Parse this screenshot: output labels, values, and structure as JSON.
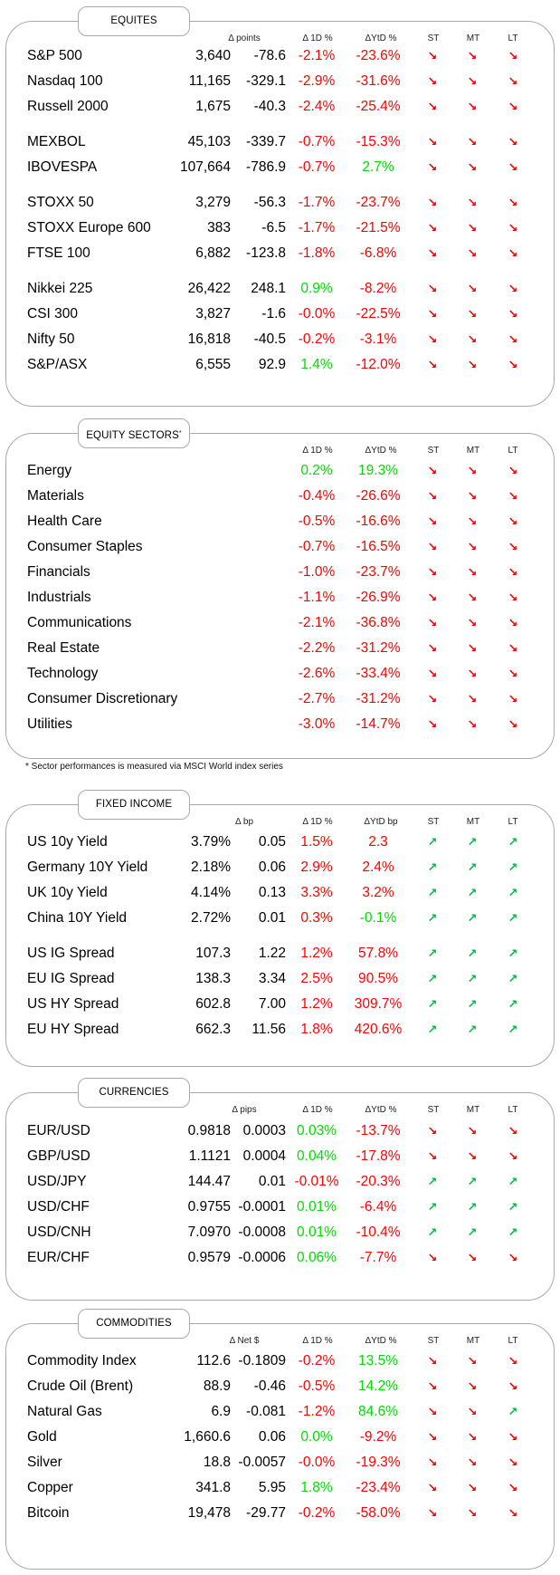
{
  "sections": [
    {
      "id": "equities",
      "title": "EQUITES",
      "superscript": "",
      "headers": [
        "Δ points",
        "Δ 1D %",
        "ΔYtD %",
        "ST",
        "MT",
        "LT"
      ],
      "groups": [
        [
          {
            "name": "S&P 500",
            "level": "3,640",
            "delta": "-78.6",
            "d1": "-2.1%",
            "ytd": "-23.6%",
            "st": "down",
            "mt": "down",
            "lt": "down"
          },
          {
            "name": "Nasdaq 100",
            "level": "11,165",
            "delta": "-329.1",
            "d1": "-2.9%",
            "ytd": "-31.6%",
            "st": "down",
            "mt": "down",
            "lt": "down"
          },
          {
            "name": "Russell 2000",
            "level": "1,675",
            "delta": "-40.3",
            "d1": "-2.4%",
            "ytd": "-25.4%",
            "st": "down",
            "mt": "down",
            "lt": "down"
          }
        ],
        [
          {
            "name": "MEXBOL",
            "level": "45,103",
            "delta": "-339.7",
            "d1": "-0.7%",
            "ytd": "-15.3%",
            "st": "down",
            "mt": "down",
            "lt": "down"
          },
          {
            "name": "IBOVESPA",
            "level": "107,664",
            "delta": "-786.9",
            "d1": "-0.7%",
            "ytd": "2.7%",
            "st": "down",
            "mt": "down",
            "lt": "down"
          }
        ],
        [
          {
            "name": "STOXX 50",
            "level": "3,279",
            "delta": "-56.3",
            "d1": "-1.7%",
            "ytd": "-23.7%",
            "st": "down",
            "mt": "down",
            "lt": "down"
          },
          {
            "name": "STOXX Europe 600",
            "level": "383",
            "delta": "-6.5",
            "d1": "-1.7%",
            "ytd": "-21.5%",
            "st": "down",
            "mt": "down",
            "lt": "down"
          },
          {
            "name": "FTSE 100",
            "level": "6,882",
            "delta": "-123.8",
            "d1": "-1.8%",
            "ytd": "-6.8%",
            "st": "down",
            "mt": "down",
            "lt": "down"
          }
        ],
        [
          {
            "name": "Nikkei 225",
            "level": "26,422",
            "delta": "248.1",
            "d1": "0.9%",
            "ytd": "-8.2%",
            "st": "down",
            "mt": "down",
            "lt": "down"
          },
          {
            "name": "CSI 300",
            "level": "3,827",
            "delta": "-1.6",
            "d1": "-0.0%",
            "ytd": "-22.5%",
            "st": "down",
            "mt": "down",
            "lt": "down"
          },
          {
            "name": "Nifty  50",
            "level": "16,818",
            "delta": "-40.5",
            "d1": "-0.2%",
            "ytd": "-3.1%",
            "st": "down",
            "mt": "down",
            "lt": "down"
          },
          {
            "name": "S&P/ASX",
            "level": "6,555",
            "delta": "92.9",
            "d1": "1.4%",
            "ytd": "-12.0%",
            "st": "down",
            "mt": "down",
            "lt": "down"
          }
        ]
      ]
    },
    {
      "id": "sectors",
      "title": "EQUITY SECTORS",
      "superscript": "*",
      "headers": [
        "",
        "Δ 1D %",
        "ΔYtD %",
        "ST",
        "MT",
        "LT"
      ],
      "groups": [
        [
          {
            "name": "Energy",
            "level": "",
            "delta": "",
            "d1": "0.2%",
            "ytd": "19.3%",
            "st": "down",
            "mt": "down",
            "lt": "down"
          },
          {
            "name": "Materials",
            "level": "",
            "delta": "",
            "d1": "-0.4%",
            "ytd": "-26.6%",
            "st": "down",
            "mt": "down",
            "lt": "down"
          },
          {
            "name": "Health Care",
            "level": "",
            "delta": "",
            "d1": "-0.5%",
            "ytd": "-16.6%",
            "st": "down",
            "mt": "down",
            "lt": "down"
          },
          {
            "name": "Consumer Staples",
            "level": "",
            "delta": "",
            "d1": "-0.7%",
            "ytd": "-16.5%",
            "st": "down",
            "mt": "down",
            "lt": "down"
          },
          {
            "name": "Financials",
            "level": "",
            "delta": "",
            "d1": "-1.0%",
            "ytd": "-23.7%",
            "st": "down",
            "mt": "down",
            "lt": "down"
          },
          {
            "name": "Industrials",
            "level": "",
            "delta": "",
            "d1": "-1.1%",
            "ytd": "-26.9%",
            "st": "down",
            "mt": "down",
            "lt": "down"
          },
          {
            "name": "Communications",
            "level": "",
            "delta": "",
            "d1": "-2.1%",
            "ytd": "-36.8%",
            "st": "down",
            "mt": "down",
            "lt": "down"
          },
          {
            "name": "Real Estate",
            "level": "",
            "delta": "",
            "d1": "-2.2%",
            "ytd": "-31.2%",
            "st": "down",
            "mt": "down",
            "lt": "down"
          },
          {
            "name": "Technology",
            "level": "",
            "delta": "",
            "d1": "-2.6%",
            "ytd": "-33.4%",
            "st": "down",
            "mt": "down",
            "lt": "down"
          },
          {
            "name": "Consumer Discretionary",
            "level": "",
            "delta": "",
            "d1": "-2.7%",
            "ytd": "-31.2%",
            "st": "down",
            "mt": "down",
            "lt": "down"
          },
          {
            "name": "Utilities",
            "level": "",
            "delta": "",
            "d1": "-3.0%",
            "ytd": "-14.7%",
            "st": "down",
            "mt": "down",
            "lt": "down"
          }
        ]
      ],
      "footnote": "* Sector performances is measured via MSCI World index series"
    },
    {
      "id": "fixed",
      "title": "FIXED INCOME",
      "superscript": "",
      "headers": [
        "Δ bp",
        "Δ 1D %",
        "ΔYtD bp",
        "ST",
        "MT",
        "LT"
      ],
      "groups": [
        [
          {
            "name": "US 10y Yield",
            "level": "3.79%",
            "delta": "0.05",
            "d1": "1.5%",
            "ytd": "2.3",
            "st": "up",
            "mt": "up",
            "lt": "up",
            "d1c": "neg",
            "ytdc": "neg"
          },
          {
            "name": "Germany 10Y Yield",
            "level": "2.18%",
            "delta": "0.06",
            "d1": "2.9%",
            "ytd": "2.4%",
            "st": "up",
            "mt": "up",
            "lt": "up",
            "d1c": "neg",
            "ytdc": "neg"
          },
          {
            "name": "UK 10y Yield",
            "level": "4.14%",
            "delta": "0.13",
            "d1": "3.3%",
            "ytd": "3.2%",
            "st": "up",
            "mt": "up",
            "lt": "up",
            "d1c": "neg",
            "ytdc": "neg"
          },
          {
            "name": "China 10Y Yield",
            "level": "2.72%",
            "delta": "0.01",
            "d1": "0.3%",
            "ytd": "-0.1%",
            "st": "up",
            "mt": "up",
            "lt": "up",
            "d1c": "neg",
            "ytdc": "pos"
          }
        ],
        [
          {
            "name": "US IG Spread",
            "level": "107.3",
            "delta": "1.22",
            "d1": "1.2%",
            "ytd": "57.8%",
            "st": "up",
            "mt": "up",
            "lt": "up",
            "d1c": "neg",
            "ytdc": "neg"
          },
          {
            "name": "EU IG Spread",
            "level": "138.3",
            "delta": "3.34",
            "d1": "2.5%",
            "ytd": "90.5%",
            "st": "up",
            "mt": "up",
            "lt": "up",
            "d1c": "neg",
            "ytdc": "neg"
          },
          {
            "name": "US HY Spread",
            "level": "602.8",
            "delta": "7.00",
            "d1": "1.2%",
            "ytd": "309.7%",
            "st": "up",
            "mt": "up",
            "lt": "up",
            "d1c": "neg",
            "ytdc": "neg"
          },
          {
            "name": "EU HY Spread",
            "level": "662.3",
            "delta": "11.56",
            "d1": "1.8%",
            "ytd": "420.6%",
            "st": "up",
            "mt": "up",
            "lt": "up",
            "d1c": "neg",
            "ytdc": "neg"
          }
        ]
      ]
    },
    {
      "id": "currencies",
      "title": "CURRENCIES",
      "superscript": "",
      "headers": [
        "Δ pips",
        "Δ 1D %",
        "ΔYtD %",
        "ST",
        "MT",
        "LT"
      ],
      "groups": [
        [
          {
            "name": "EUR/USD",
            "level": "0.9818",
            "delta": "0.0003",
            "d1": "0.03%",
            "ytd": "-13.7%",
            "st": "down",
            "mt": "down",
            "lt": "down"
          },
          {
            "name": "GBP/USD",
            "level": "1.1121",
            "delta": "0.0004",
            "d1": "0.04%",
            "ytd": "-17.8%",
            "st": "down",
            "mt": "down",
            "lt": "down"
          },
          {
            "name": "USD/JPY",
            "level": "144.47",
            "delta": "0.01",
            "d1": "-0.01%",
            "ytd": "-20.3%",
            "st": "up",
            "mt": "up",
            "lt": "up"
          },
          {
            "name": "USD/CHF",
            "level": "0.9755",
            "delta": "-0.0001",
            "d1": "0.01%",
            "ytd": "-6.4%",
            "st": "up",
            "mt": "up",
            "lt": "up"
          },
          {
            "name": "USD/CNH",
            "level": "7.0970",
            "delta": "-0.0008",
            "d1": "0.01%",
            "ytd": "-10.4%",
            "st": "up",
            "mt": "up",
            "lt": "up"
          },
          {
            "name": "EUR/CHF",
            "level": "0.9579",
            "delta": "-0.0006",
            "d1": "0.06%",
            "ytd": "-7.7%",
            "st": "down",
            "mt": "down",
            "lt": "down"
          }
        ]
      ]
    },
    {
      "id": "commodities",
      "title": "COMMODITIES",
      "superscript": "",
      "headers": [
        "Δ Net $",
        "Δ 1D %",
        "ΔYtD %",
        "ST",
        "MT",
        "LT"
      ],
      "groups": [
        [
          {
            "name": "Commodity Index",
            "level": "112.6",
            "delta": "-0.1809",
            "d1": "-0.2%",
            "ytd": "13.5%",
            "st": "down",
            "mt": "down",
            "lt": "down"
          },
          {
            "name": "Crude Oil (Brent)",
            "level": "88.9",
            "delta": "-0.46",
            "d1": "-0.5%",
            "ytd": "14.2%",
            "st": "down",
            "mt": "down",
            "lt": "down"
          },
          {
            "name": "Natural Gas",
            "level": "6.9",
            "delta": "-0.081",
            "d1": "-1.2%",
            "ytd": "84.6%",
            "st": "down",
            "mt": "down",
            "lt": "up"
          },
          {
            "name": "Gold",
            "level": "1,660.6",
            "delta": "0.06",
            "d1": "0.0%",
            "ytd": "-9.2%",
            "st": "down",
            "mt": "down",
            "lt": "down",
            "d1c": "pos"
          },
          {
            "name": "Silver",
            "level": "18.8",
            "delta": "-0.0057",
            "d1": "-0.0%",
            "ytd": "-19.3%",
            "st": "down",
            "mt": "down",
            "lt": "down"
          },
          {
            "name": "Copper",
            "level": "341.8",
            "delta": "5.95",
            "d1": "1.8%",
            "ytd": "-23.4%",
            "st": "down",
            "mt": "down",
            "lt": "down"
          },
          {
            "name": "Bitcoin",
            "level": "19,478",
            "delta": "-29.77",
            "d1": "-0.2%",
            "ytd": "-58.0%",
            "st": "down",
            "mt": "down",
            "lt": "down"
          }
        ]
      ]
    }
  ],
  "colors": {
    "positive": "#00dd00",
    "negative": "#ff0000",
    "arrow_down": "#ee0000",
    "arrow_up": "#00bb44",
    "border": "#a9a9a9"
  }
}
